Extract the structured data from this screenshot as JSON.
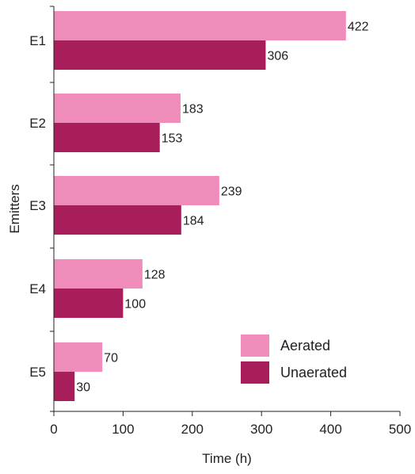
{
  "chart_data": {
    "type": "bar",
    "orientation": "horizontal",
    "categories": [
      "E1",
      "E2",
      "E3",
      "E4",
      "E5"
    ],
    "series": [
      {
        "name": "Aerated",
        "values": [
          422,
          183,
          239,
          128,
          70
        ],
        "color": "#f08cba"
      },
      {
        "name": "Unaerated",
        "values": [
          306,
          153,
          184,
          100,
          30
        ],
        "color": "#a71e5a"
      }
    ],
    "xlabel": "Time (h)",
    "ylabel": "Emitters",
    "xlim": [
      0,
      500
    ],
    "xticks": [
      0,
      100,
      200,
      300,
      400,
      500
    ],
    "grid": false,
    "legend_position": "bottom-right",
    "data_labels": true
  }
}
